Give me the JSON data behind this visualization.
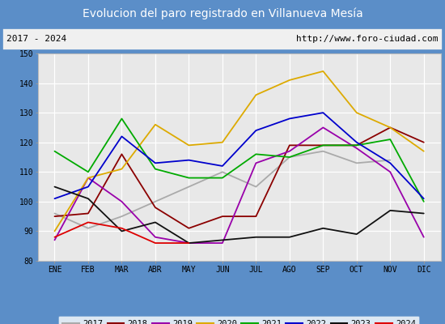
{
  "title": "Evolucion del paro registrado en Villanueva Mesía",
  "subtitle_left": "2017 - 2024",
  "subtitle_right": "http://www.foro-ciudad.com",
  "months": [
    "ENE",
    "FEB",
    "MAR",
    "ABR",
    "MAY",
    "JUN",
    "JUL",
    "AGO",
    "SEP",
    "OCT",
    "NOV",
    "DIC"
  ],
  "ylim": [
    80,
    150
  ],
  "yticks": [
    80,
    90,
    100,
    110,
    120,
    130,
    140,
    150
  ],
  "colors": {
    "2017": "#aaaaaa",
    "2018": "#8b0000",
    "2019": "#9900aa",
    "2020": "#ddaa00",
    "2021": "#00aa00",
    "2022": "#0000cc",
    "2023": "#111111",
    "2024": "#dd0000"
  },
  "series": {
    "2017": [
      96,
      91,
      95,
      100,
      105,
      110,
      105,
      115,
      117,
      113,
      114,
      null
    ],
    "2018": [
      95,
      96,
      116,
      98,
      91,
      95,
      95,
      119,
      119,
      119,
      125,
      120
    ],
    "2019": [
      87,
      108,
      100,
      88,
      86,
      86,
      113,
      117,
      125,
      118,
      110,
      88
    ],
    "2020": [
      90,
      108,
      111,
      126,
      119,
      120,
      136,
      141,
      144,
      130,
      125,
      117
    ],
    "2021": [
      117,
      110,
      128,
      111,
      108,
      108,
      116,
      115,
      119,
      119,
      121,
      100
    ],
    "2022": [
      101,
      105,
      122,
      113,
      114,
      112,
      124,
      128,
      130,
      120,
      113,
      101
    ],
    "2023": [
      105,
      101,
      90,
      93,
      86,
      87,
      88,
      88,
      91,
      89,
      97,
      96
    ],
    "2024": [
      88,
      93,
      91,
      86,
      86,
      null,
      null,
      null,
      null,
      null,
      null,
      null
    ]
  },
  "title_bg_color": "#5b8ec8",
  "title_text_color": "#ffffff",
  "subtitle_bg_color": "#f0f0f0",
  "plot_bg_color": "#e8e8e8",
  "grid_color": "#ffffff",
  "legend_border_color": "#5b8ec8"
}
